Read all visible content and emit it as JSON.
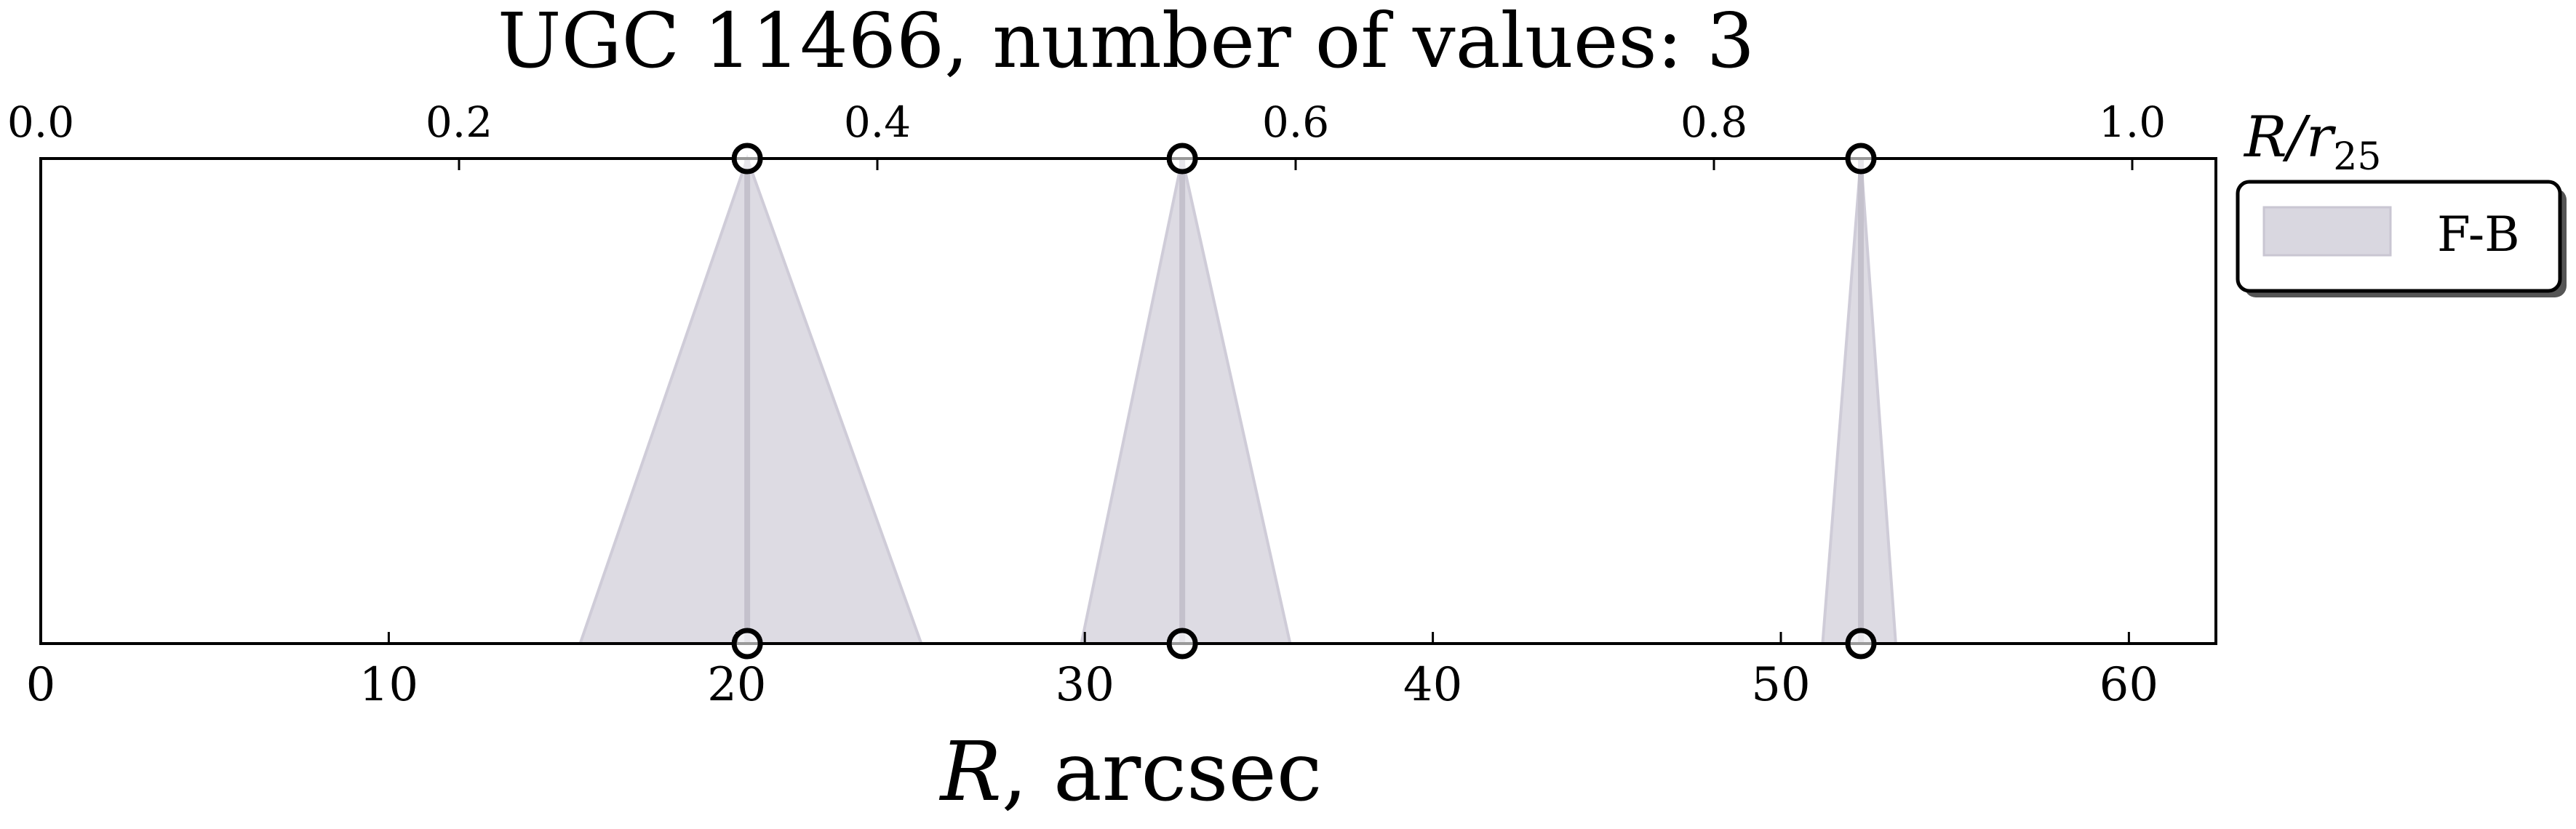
{
  "chart_data": {
    "type": "area",
    "title": "UGC 11466, number of values: 3",
    "xlabel": "R, arcsec",
    "xlabel_italic_part": "R",
    "xlabel_rest": ", arcsec",
    "secondary_xlabel": "R/r25",
    "secondary_xlabel_main": "R/r",
    "secondary_xlabel_sub": "25",
    "xlim": [
      0,
      62.5
    ],
    "xticks": [
      0,
      10,
      20,
      30,
      40,
      50,
      60
    ],
    "xtick_labels": [
      "0",
      "10",
      "20",
      "30",
      "40",
      "50",
      "60"
    ],
    "secondary_xlim": [
      0.0,
      1.04
    ],
    "secondary_xticks": [
      0.0,
      0.2,
      0.4,
      0.6,
      0.8,
      1.0
    ],
    "secondary_xtick_labels": [
      "0.0",
      "0.2",
      "0.4",
      "0.6",
      "0.8",
      "1.0"
    ],
    "yticks_shown": false,
    "grid": false,
    "legend_position": "outside-right-top",
    "series": [
      {
        "name": "F-B",
        "color": "#d9d7e0",
        "points": [
          {
            "x": 20.3,
            "x_min": 15.5,
            "x_max": 25.3
          },
          {
            "x": 32.8,
            "x_min": 29.9,
            "x_max": 35.9
          },
          {
            "x": 52.3,
            "x_min": 51.2,
            "x_max": 53.3
          }
        ]
      }
    ]
  }
}
